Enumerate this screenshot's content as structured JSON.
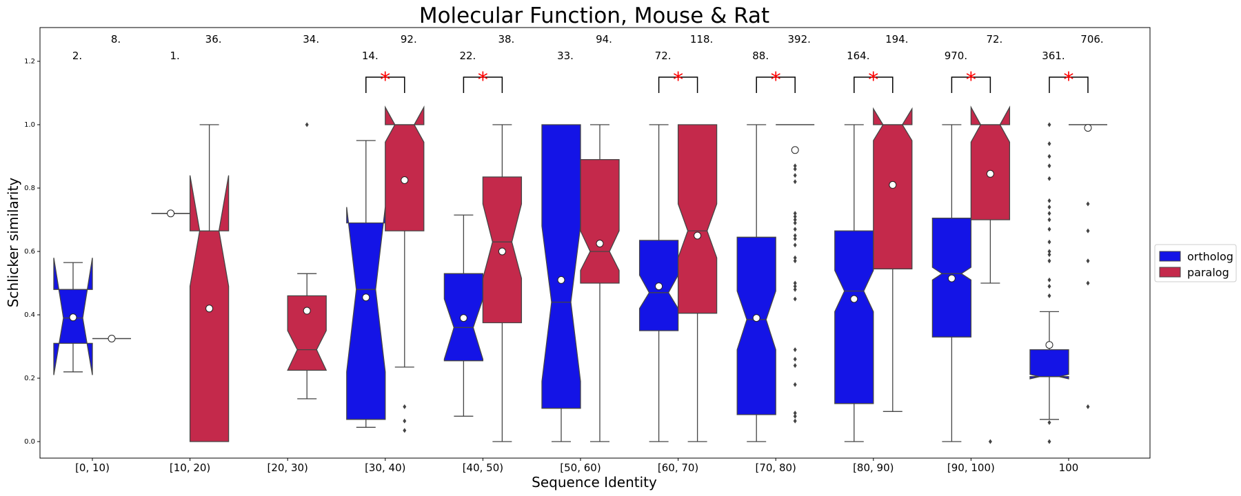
{
  "chart_data": {
    "type": "boxplot",
    "title": "Molecular Function, Mouse & Rat",
    "xlabel": "Sequence Identity",
    "ylabel": "Schlicker similarity",
    "ylim": [
      -0.05,
      1.3
    ],
    "yticks": [
      "0.0",
      "0.2",
      "0.4",
      "0.6",
      "0.8",
      "1.0",
      "1.2"
    ],
    "categories": [
      "[0, 10)",
      "[10, 20)",
      "[20, 30)",
      "[30, 40)",
      "[40, 50)",
      "[50, 60)",
      "[60, 70)",
      "[70, 80)",
      "[80, 90)",
      "[90, 100)",
      "100"
    ],
    "legend": {
      "position": "right",
      "entries": [
        "ortholog",
        "paralog"
      ]
    },
    "colors": {
      "ortholog": "#1414e6",
      "paralog": "#c4294b",
      "significance": "#ff0000",
      "line": "#444444"
    },
    "series": [
      {
        "name": "ortholog",
        "counts": [
          "2.",
          "1.",
          "",
          "14.",
          "22.",
          "33.",
          "72.",
          "88.",
          "164.",
          "970.",
          "361."
        ],
        "boxes": [
          {
            "q1": 0.31,
            "median": 0.39,
            "q3": 0.48,
            "whislo": 0.22,
            "whishi": 0.565,
            "mean": 0.392,
            "notch_lo": 0.21,
            "notch_hi": 0.58,
            "fliers": []
          },
          {
            "q1": 0.72,
            "median": 0.72,
            "q3": 0.72,
            "whislo": 0.72,
            "whishi": 0.72,
            "mean": 0.72,
            "notch_lo": 0.72,
            "notch_hi": 0.72,
            "fliers": []
          },
          null,
          {
            "q1": 0.07,
            "median": 0.48,
            "q3": 0.69,
            "whislo": 0.045,
            "whishi": 0.95,
            "mean": 0.455,
            "notch_lo": 0.22,
            "notch_hi": 0.74,
            "fliers": []
          },
          {
            "q1": 0.255,
            "median": 0.36,
            "q3": 0.53,
            "whislo": 0.08,
            "whishi": 0.715,
            "mean": 0.39,
            "notch_lo": 0.26,
            "notch_hi": 0.45,
            "fliers": []
          },
          {
            "q1": 0.105,
            "median": 0.44,
            "q3": 1.0,
            "whislo": 0.0,
            "whishi": 1.0,
            "mean": 0.51,
            "notch_lo": 0.19,
            "notch_hi": 0.68,
            "fliers": []
          },
          {
            "q1": 0.35,
            "median": 0.47,
            "q3": 0.635,
            "whislo": 0.0,
            "whishi": 1.0,
            "mean": 0.49,
            "notch_lo": 0.42,
            "notch_hi": 0.525,
            "fliers": []
          },
          {
            "q1": 0.085,
            "median": 0.385,
            "q3": 0.645,
            "whislo": 0.0,
            "whishi": 1.0,
            "mean": 0.39,
            "notch_lo": 0.29,
            "notch_hi": 0.475,
            "fliers": []
          },
          {
            "q1": 0.12,
            "median": 0.475,
            "q3": 0.665,
            "whislo": 0.0,
            "whishi": 1.0,
            "mean": 0.45,
            "notch_lo": 0.41,
            "notch_hi": 0.54,
            "fliers": []
          },
          {
            "q1": 0.33,
            "median": 0.53,
            "q3": 0.705,
            "whislo": 0.0,
            "whishi": 1.0,
            "mean": 0.515,
            "notch_lo": 0.51,
            "notch_hi": 0.55,
            "fliers": []
          },
          {
            "q1": 0.205,
            "median": 0.205,
            "q3": 0.29,
            "whislo": 0.07,
            "whishi": 0.41,
            "mean": 0.305,
            "notch_lo": 0.198,
            "notch_hi": 0.212,
            "fliers": [
              0.0,
              0.06,
              1.0,
              0.94,
              0.9,
              0.87,
              0.83,
              0.76,
              0.74,
              0.72,
              0.7,
              0.67,
              0.63,
              0.6,
              0.59,
              0.57,
              0.51,
              0.49,
              0.46
            ]
          }
        ]
      },
      {
        "name": "paralog",
        "counts": [
          "8.",
          "36.",
          "34.",
          "92.",
          "38.",
          "94.",
          "118.",
          "392.",
          "194.",
          "72.",
          "706."
        ],
        "boxes": [
          {
            "q1": 0.325,
            "median": 0.325,
            "q3": 0.325,
            "whislo": 0.325,
            "whishi": 0.325,
            "mean": 0.325,
            "notch_lo": 0.325,
            "notch_hi": 0.325,
            "fliers": []
          },
          {
            "q1": 0.0,
            "median": 0.665,
            "q3": 0.665,
            "whislo": 0.0,
            "whishi": 1.0,
            "mean": 0.42,
            "notch_lo": 0.49,
            "notch_hi": 0.84,
            "fliers": []
          },
          {
            "q1": 0.225,
            "median": 0.29,
            "q3": 0.46,
            "whislo": 0.135,
            "whishi": 0.53,
            "mean": 0.413,
            "notch_lo": 0.225,
            "notch_hi": 0.35,
            "fliers": [
              1.0
            ]
          },
          {
            "q1": 0.665,
            "median": 1.0,
            "q3": 1.0,
            "whislo": 0.235,
            "whishi": 1.0,
            "mean": 0.825,
            "notch_lo": 0.945,
            "notch_hi": 1.055,
            "fliers": [
              0.11,
              0.065,
              0.035
            ]
          },
          {
            "q1": 0.375,
            "median": 0.63,
            "q3": 0.835,
            "whislo": 0.0,
            "whishi": 1.0,
            "mean": 0.6,
            "notch_lo": 0.515,
            "notch_hi": 0.75,
            "fliers": []
          },
          {
            "q1": 0.5,
            "median": 0.6,
            "q3": 0.89,
            "whislo": 0.0,
            "whishi": 1.0,
            "mean": 0.625,
            "notch_lo": 0.54,
            "notch_hi": 0.665,
            "fliers": []
          },
          {
            "q1": 0.405,
            "median": 0.665,
            "q3": 1.0,
            "whislo": 0.0,
            "whishi": 1.0,
            "mean": 0.65,
            "notch_lo": 0.58,
            "notch_hi": 0.75,
            "fliers": []
          },
          {
            "q1": 1.0,
            "median": 1.0,
            "q3": 1.0,
            "whislo": 1.0,
            "whishi": 1.0,
            "mean": 0.92,
            "notch_lo": 1.0,
            "notch_hi": 1.0,
            "fliers": [
              0.87,
              0.86,
              0.84,
              0.82,
              0.72,
              0.71,
              0.7,
              0.69,
              0.67,
              0.65,
              0.64,
              0.62,
              0.58,
              0.57,
              0.5,
              0.49,
              0.48,
              0.45,
              0.29,
              0.26,
              0.24,
              0.18,
              0.09,
              0.08,
              0.065
            ]
          },
          {
            "q1": 0.545,
            "median": 1.0,
            "q3": 1.0,
            "whislo": 0.095,
            "whishi": 1.0,
            "mean": 0.81,
            "notch_lo": 0.95,
            "notch_hi": 1.05,
            "fliers": []
          },
          {
            "q1": 0.7,
            "median": 1.0,
            "q3": 1.0,
            "whislo": 0.5,
            "whishi": 1.0,
            "mean": 0.845,
            "notch_lo": 0.945,
            "notch_hi": 1.055,
            "fliers": [
              0.0
            ]
          },
          {
            "q1": 1.0,
            "median": 1.0,
            "q3": 1.0,
            "whislo": 1.0,
            "whishi": 1.0,
            "mean": 0.99,
            "notch_lo": 1.0,
            "notch_hi": 1.0,
            "fliers": [
              0.75,
              0.665,
              0.57,
              0.5,
              0.11
            ]
          }
        ]
      }
    ],
    "significance": [
      false,
      false,
      false,
      true,
      true,
      false,
      true,
      true,
      true,
      true,
      true
    ],
    "significance_marker": "*"
  }
}
